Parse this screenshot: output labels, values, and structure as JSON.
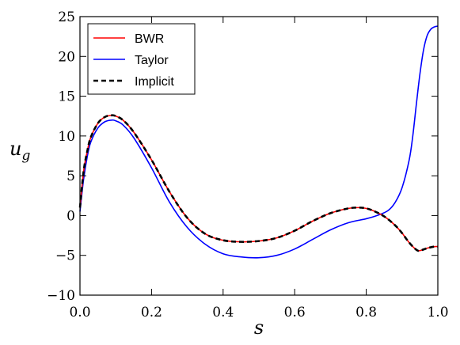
{
  "chart_data": {
    "type": "line",
    "title": "",
    "xlabel": "s",
    "ylabel": "u",
    "ylabel_sub": "g",
    "xlim": [
      0.0,
      1.0
    ],
    "ylim": [
      -10,
      25
    ],
    "xticks": [
      0.0,
      0.2,
      0.4,
      0.6,
      0.8,
      1.0
    ],
    "xtick_labels": [
      "0.0",
      "0.2",
      "0.4",
      "0.6",
      "0.8",
      "1.0"
    ],
    "yticks": [
      -10,
      -5,
      0,
      5,
      10,
      15,
      20,
      25
    ],
    "ytick_labels": [
      "−10",
      "−5",
      "0",
      "5",
      "10",
      "15",
      "20",
      "25"
    ],
    "grid": false,
    "legend_position": "top-left",
    "series": [
      {
        "name": "BWR",
        "color": "#ff0000",
        "style": "solid",
        "x": [
          0.0,
          0.01,
          0.02,
          0.03,
          0.05,
          0.07,
          0.09,
          0.1,
          0.12,
          0.15,
          0.2,
          0.25,
          0.3,
          0.35,
          0.4,
          0.45,
          0.5,
          0.55,
          0.6,
          0.65,
          0.7,
          0.75,
          0.78,
          0.8,
          0.82,
          0.85,
          0.88,
          0.9,
          0.92,
          0.94,
          0.95,
          0.97,
          0.99,
          1.0
        ],
        "y": [
          1.0,
          5.5,
          8.0,
          9.8,
          11.6,
          12.4,
          12.6,
          12.5,
          12.0,
          10.5,
          7.0,
          3.0,
          -0.3,
          -2.3,
          -3.1,
          -3.3,
          -3.2,
          -2.8,
          -1.9,
          -0.7,
          0.3,
          0.9,
          1.0,
          0.9,
          0.6,
          -0.1,
          -1.2,
          -2.2,
          -3.4,
          -4.3,
          -4.4,
          -4.1,
          -3.9,
          -3.9
        ]
      },
      {
        "name": "Taylor",
        "color": "#0000ff",
        "style": "solid",
        "x": [
          0.0,
          0.01,
          0.02,
          0.03,
          0.05,
          0.07,
          0.09,
          0.1,
          0.12,
          0.15,
          0.2,
          0.25,
          0.3,
          0.35,
          0.4,
          0.45,
          0.5,
          0.55,
          0.6,
          0.65,
          0.7,
          0.75,
          0.8,
          0.83,
          0.86,
          0.88,
          0.9,
          0.92,
          0.93,
          0.94,
          0.95,
          0.96,
          0.97,
          0.98,
          0.99,
          1.0
        ],
        "y": [
          0.5,
          4.5,
          7.3,
          9.2,
          11.0,
          11.8,
          12.0,
          11.9,
          11.4,
          9.8,
          6.0,
          1.7,
          -1.5,
          -3.6,
          -4.8,
          -5.2,
          -5.3,
          -5.0,
          -4.2,
          -3.0,
          -1.8,
          -0.9,
          -0.4,
          0.0,
          0.6,
          1.6,
          3.5,
          7.0,
          10.0,
          14.0,
          17.8,
          20.8,
          22.6,
          23.4,
          23.7,
          23.8
        ]
      },
      {
        "name": "Implicit",
        "color": "#000000",
        "style": "dashed",
        "x": [
          0.0,
          0.01,
          0.02,
          0.03,
          0.05,
          0.07,
          0.09,
          0.1,
          0.12,
          0.15,
          0.2,
          0.25,
          0.3,
          0.35,
          0.4,
          0.45,
          0.5,
          0.55,
          0.6,
          0.65,
          0.7,
          0.75,
          0.78,
          0.8,
          0.82,
          0.85,
          0.88,
          0.9,
          0.92,
          0.94,
          0.95,
          0.97,
          0.99,
          1.0
        ],
        "y": [
          1.0,
          5.5,
          8.0,
          9.8,
          11.6,
          12.4,
          12.6,
          12.5,
          12.0,
          10.5,
          7.0,
          3.0,
          -0.3,
          -2.3,
          -3.1,
          -3.3,
          -3.2,
          -2.8,
          -1.9,
          -0.7,
          0.3,
          0.9,
          1.0,
          0.9,
          0.6,
          -0.1,
          -1.2,
          -2.2,
          -3.4,
          -4.3,
          -4.4,
          -4.1,
          -3.9,
          -3.9
        ]
      }
    ]
  }
}
